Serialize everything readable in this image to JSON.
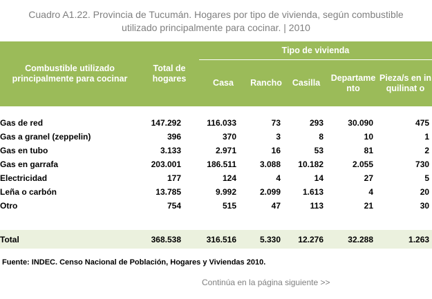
{
  "title": {
    "line1": "Cuadro A1.22. Provincia de Tucumán. Hogares por tipo de vivienda, según combustible",
    "line2": "utilizado principalmente para cocinar.  |  2010"
  },
  "header": {
    "col_label": "Combustible utilizado principalmente para cocinar",
    "total": "Total de hogares",
    "group": "Tipo de vivienda",
    "sub": [
      "Casa",
      "Rancho",
      "Casilla",
      "Departame nto",
      "Pieza/s en inquilinat o"
    ]
  },
  "rows": [
    {
      "label": "Gas de red",
      "values": [
        "147.292",
        "116.033",
        "73",
        "293",
        "30.090",
        "475"
      ]
    },
    {
      "label": "Gas a granel (zeppelin)",
      "values": [
        "396",
        "370",
        "3",
        "8",
        "10",
        "1"
      ]
    },
    {
      "label": "Gas en tubo",
      "values": [
        "3.133",
        "2.971",
        "16",
        "53",
        "81",
        "2"
      ]
    },
    {
      "label": "Gas en garrafa",
      "values": [
        "203.001",
        "186.511",
        "3.088",
        "10.182",
        "2.055",
        "730"
      ]
    },
    {
      "label": "Electricidad",
      "values": [
        "177",
        "124",
        "4",
        "14",
        "27",
        "5"
      ]
    },
    {
      "label": "Leña o carbón",
      "values": [
        "13.785",
        "9.992",
        "2.099",
        "1.613",
        "4",
        "20"
      ]
    },
    {
      "label": "Otro",
      "values": [
        "754",
        "515",
        "47",
        "113",
        "21",
        "30"
      ]
    }
  ],
  "total": {
    "label": "Total",
    "values": [
      "368.538",
      "316.516",
      "5.330",
      "12.276",
      "32.288",
      "1.263"
    ]
  },
  "source": "Fuente: INDEC. Censo Nacional de Población, Hogares y Viviendas 2010.",
  "continue": "Continúa en la página siguiente >>",
  "colors": {
    "header_bg": "#9bbb59",
    "total_bg": "#ebf1de",
    "title_text": "#7f7f7f"
  }
}
